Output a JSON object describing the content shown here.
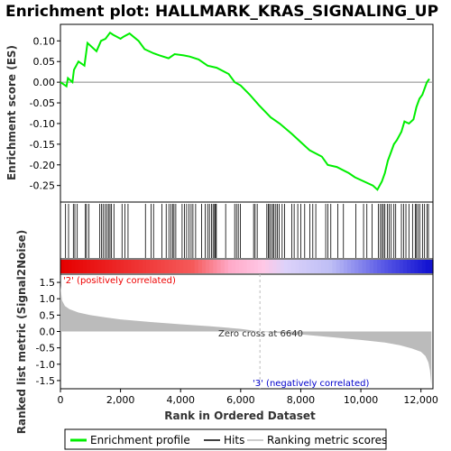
{
  "chart_data": {
    "type": "line",
    "title": "Enrichment plot: HALLMARK_KRAS_SIGNALING_UP",
    "top_panel": {
      "ylabel": "Enrichment score (ES)",
      "ylim": [
        -0.29,
        0.14
      ],
      "yticks": [
        0.1,
        0.05,
        0.0,
        -0.05,
        -0.1,
        -0.15,
        -0.2,
        -0.25
      ],
      "ytick_labels": [
        "0.10",
        "0.05",
        "0.00",
        "-0.05",
        "-0.10",
        "-0.15",
        "-0.20",
        "-0.25"
      ],
      "series": [
        {
          "name": "Enrichment profile",
          "color": "#00ee00",
          "x": [
            0,
            200,
            250,
            400,
            450,
            600,
            800,
            900,
            1200,
            1350,
            1500,
            1650,
            1750,
            2000,
            2100,
            2300,
            2600,
            2800,
            3100,
            3300,
            3600,
            3800,
            4100,
            4300,
            4600,
            4900,
            5200,
            5600,
            5800,
            6000,
            6300,
            6600,
            7000,
            7300,
            7700,
            8000,
            8300,
            8700,
            8900,
            9200,
            9600,
            9800,
            10100,
            10400,
            10550,
            10700,
            10800,
            10900,
            11000,
            11100,
            11200,
            11350,
            11450,
            11600,
            11750,
            11850,
            11950,
            12050,
            12200,
            12280
          ],
          "y": [
            0.0,
            -0.01,
            0.01,
            0.0,
            0.03,
            0.05,
            0.04,
            0.095,
            0.075,
            0.1,
            0.105,
            0.12,
            0.115,
            0.105,
            0.11,
            0.118,
            0.1,
            0.08,
            0.07,
            0.065,
            0.058,
            0.068,
            0.065,
            0.062,
            0.055,
            0.04,
            0.035,
            0.02,
            0.0,
            -0.008,
            -0.03,
            -0.055,
            -0.085,
            -0.1,
            -0.125,
            -0.145,
            -0.165,
            -0.18,
            -0.2,
            -0.205,
            -0.22,
            -0.23,
            -0.24,
            -0.25,
            -0.26,
            -0.24,
            -0.22,
            -0.19,
            -0.17,
            -0.15,
            -0.14,
            -0.12,
            -0.095,
            -0.1,
            -0.09,
            -0.06,
            -0.04,
            -0.03,
            0.0,
            0.008
          ]
        }
      ]
    },
    "hits": {
      "name": "Hits",
      "positions": [
        170,
        270,
        430,
        480,
        560,
        830,
        870,
        950,
        1310,
        1370,
        1420,
        1490,
        1550,
        1600,
        1650,
        1700,
        1780,
        2050,
        2150,
        2250,
        2830,
        3020,
        3100,
        3380,
        3520,
        3610,
        3680,
        3740,
        3780,
        3840,
        4050,
        4130,
        4200,
        4280,
        4350,
        4410,
        4500,
        4700,
        4820,
        4900,
        4960,
        5030,
        5080,
        5130,
        5160,
        5190,
        5500,
        5800,
        5860,
        5920,
        5990,
        6430,
        6480,
        6550,
        6870,
        6920,
        6960,
        7010,
        7070,
        7110,
        7170,
        7220,
        7280,
        7380,
        7460,
        7700,
        7780,
        7900,
        8000,
        8130,
        8300,
        8400,
        8500,
        8830,
        8900,
        9000,
        9230,
        9420,
        9830,
        10090,
        10200,
        10370,
        10580,
        10650,
        10700,
        10750,
        10800,
        10880,
        10940,
        11010,
        11100,
        11160,
        11350,
        11420,
        11500,
        11600,
        11720,
        11810,
        11850,
        11900,
        11960,
        12050,
        12120,
        12200,
        12250
      ]
    },
    "bottom_panel": {
      "ylabel": "Ranked list metric (Signal2Noise)",
      "xlabel": "Rank in Ordered Dataset",
      "ylim": [
        -1.75,
        1.75
      ],
      "yticks": [
        1.5,
        1.0,
        0.5,
        0.0,
        -0.5,
        -1.0,
        -1.5
      ],
      "ytick_labels": [
        "1.5",
        "1.0",
        "0.5",
        "0.0",
        "-0.5",
        "-1.0",
        "-1.5"
      ],
      "xlim": [
        0,
        12400
      ],
      "xticks": [
        0,
        2000,
        4000,
        6000,
        8000,
        10000,
        12000
      ],
      "xtick_labels": [
        "0",
        "2,000",
        "4,000",
        "6,000",
        "8,000",
        "10,000",
        "12,000"
      ],
      "metric_x": [
        0,
        50,
        150,
        300,
        600,
        1000,
        1500,
        2000,
        3000,
        4000,
        5000,
        5500,
        6000,
        6640,
        7000,
        8000,
        9000,
        10000,
        10800,
        11300,
        11700,
        12000,
        12150,
        12250,
        12300,
        12350
      ],
      "metric_y": [
        1.4,
        0.95,
        0.78,
        0.68,
        0.58,
        0.5,
        0.43,
        0.37,
        0.29,
        0.22,
        0.16,
        0.12,
        0.08,
        0.0,
        -0.03,
        -0.09,
        -0.17,
        -0.26,
        -0.34,
        -0.42,
        -0.52,
        -0.62,
        -0.75,
        -0.95,
        -1.2,
        -1.65
      ],
      "annotations": {
        "positive": "'2' (positively correlated)",
        "zero_cross": "Zero cross at 6640",
        "negative": "'3' (negatively correlated)"
      },
      "zero_cross": 6640
    },
    "legend": [
      {
        "label": "Enrichment profile",
        "color": "#00ee00"
      },
      {
        "label": "Hits",
        "color": "#000000"
      },
      {
        "label": "Ranking metric scores",
        "color": "#bbbbbb"
      }
    ],
    "colors": {
      "positive_text": "#ee0000",
      "negative_text": "#0000cc",
      "metric_fill": "#bbbbbb",
      "zero_line": "#cccccc"
    }
  }
}
